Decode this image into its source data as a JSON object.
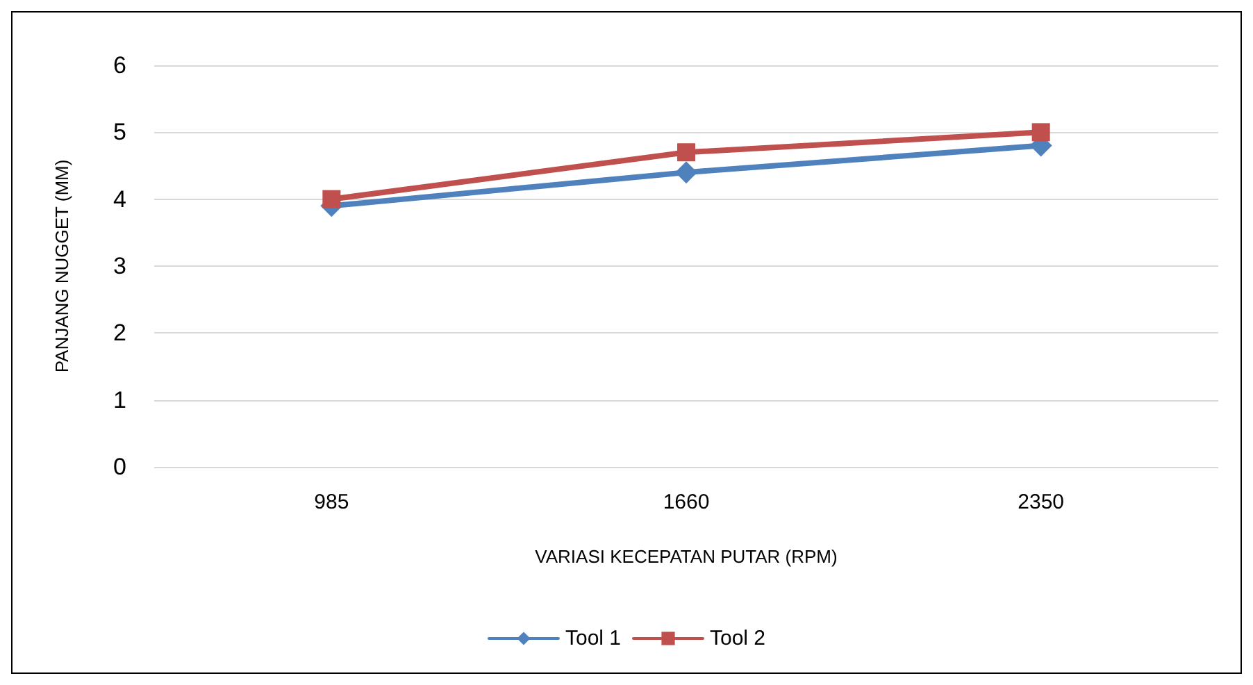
{
  "chart_data": {
    "type": "line",
    "xlabel": "VARIASI KECEPATAN PUTAR (RPM)",
    "ylabel": "PANJANG NUGGET (MM)",
    "categories": [
      "985",
      "1660",
      "2350"
    ],
    "series": [
      {
        "name": "Tool 1",
        "color": "#4f81bd",
        "marker": "diamond",
        "values": [
          3.9,
          4.4,
          4.8
        ]
      },
      {
        "name": "Tool 2",
        "color": "#c0504d",
        "marker": "square",
        "values": [
          4.0,
          4.7,
          5.0
        ]
      }
    ],
    "ylim": [
      0,
      6
    ],
    "yticks": [
      0,
      1,
      2,
      3,
      4,
      5,
      6
    ],
    "grid": "y",
    "legend": "bottom",
    "line_style": "solid"
  }
}
